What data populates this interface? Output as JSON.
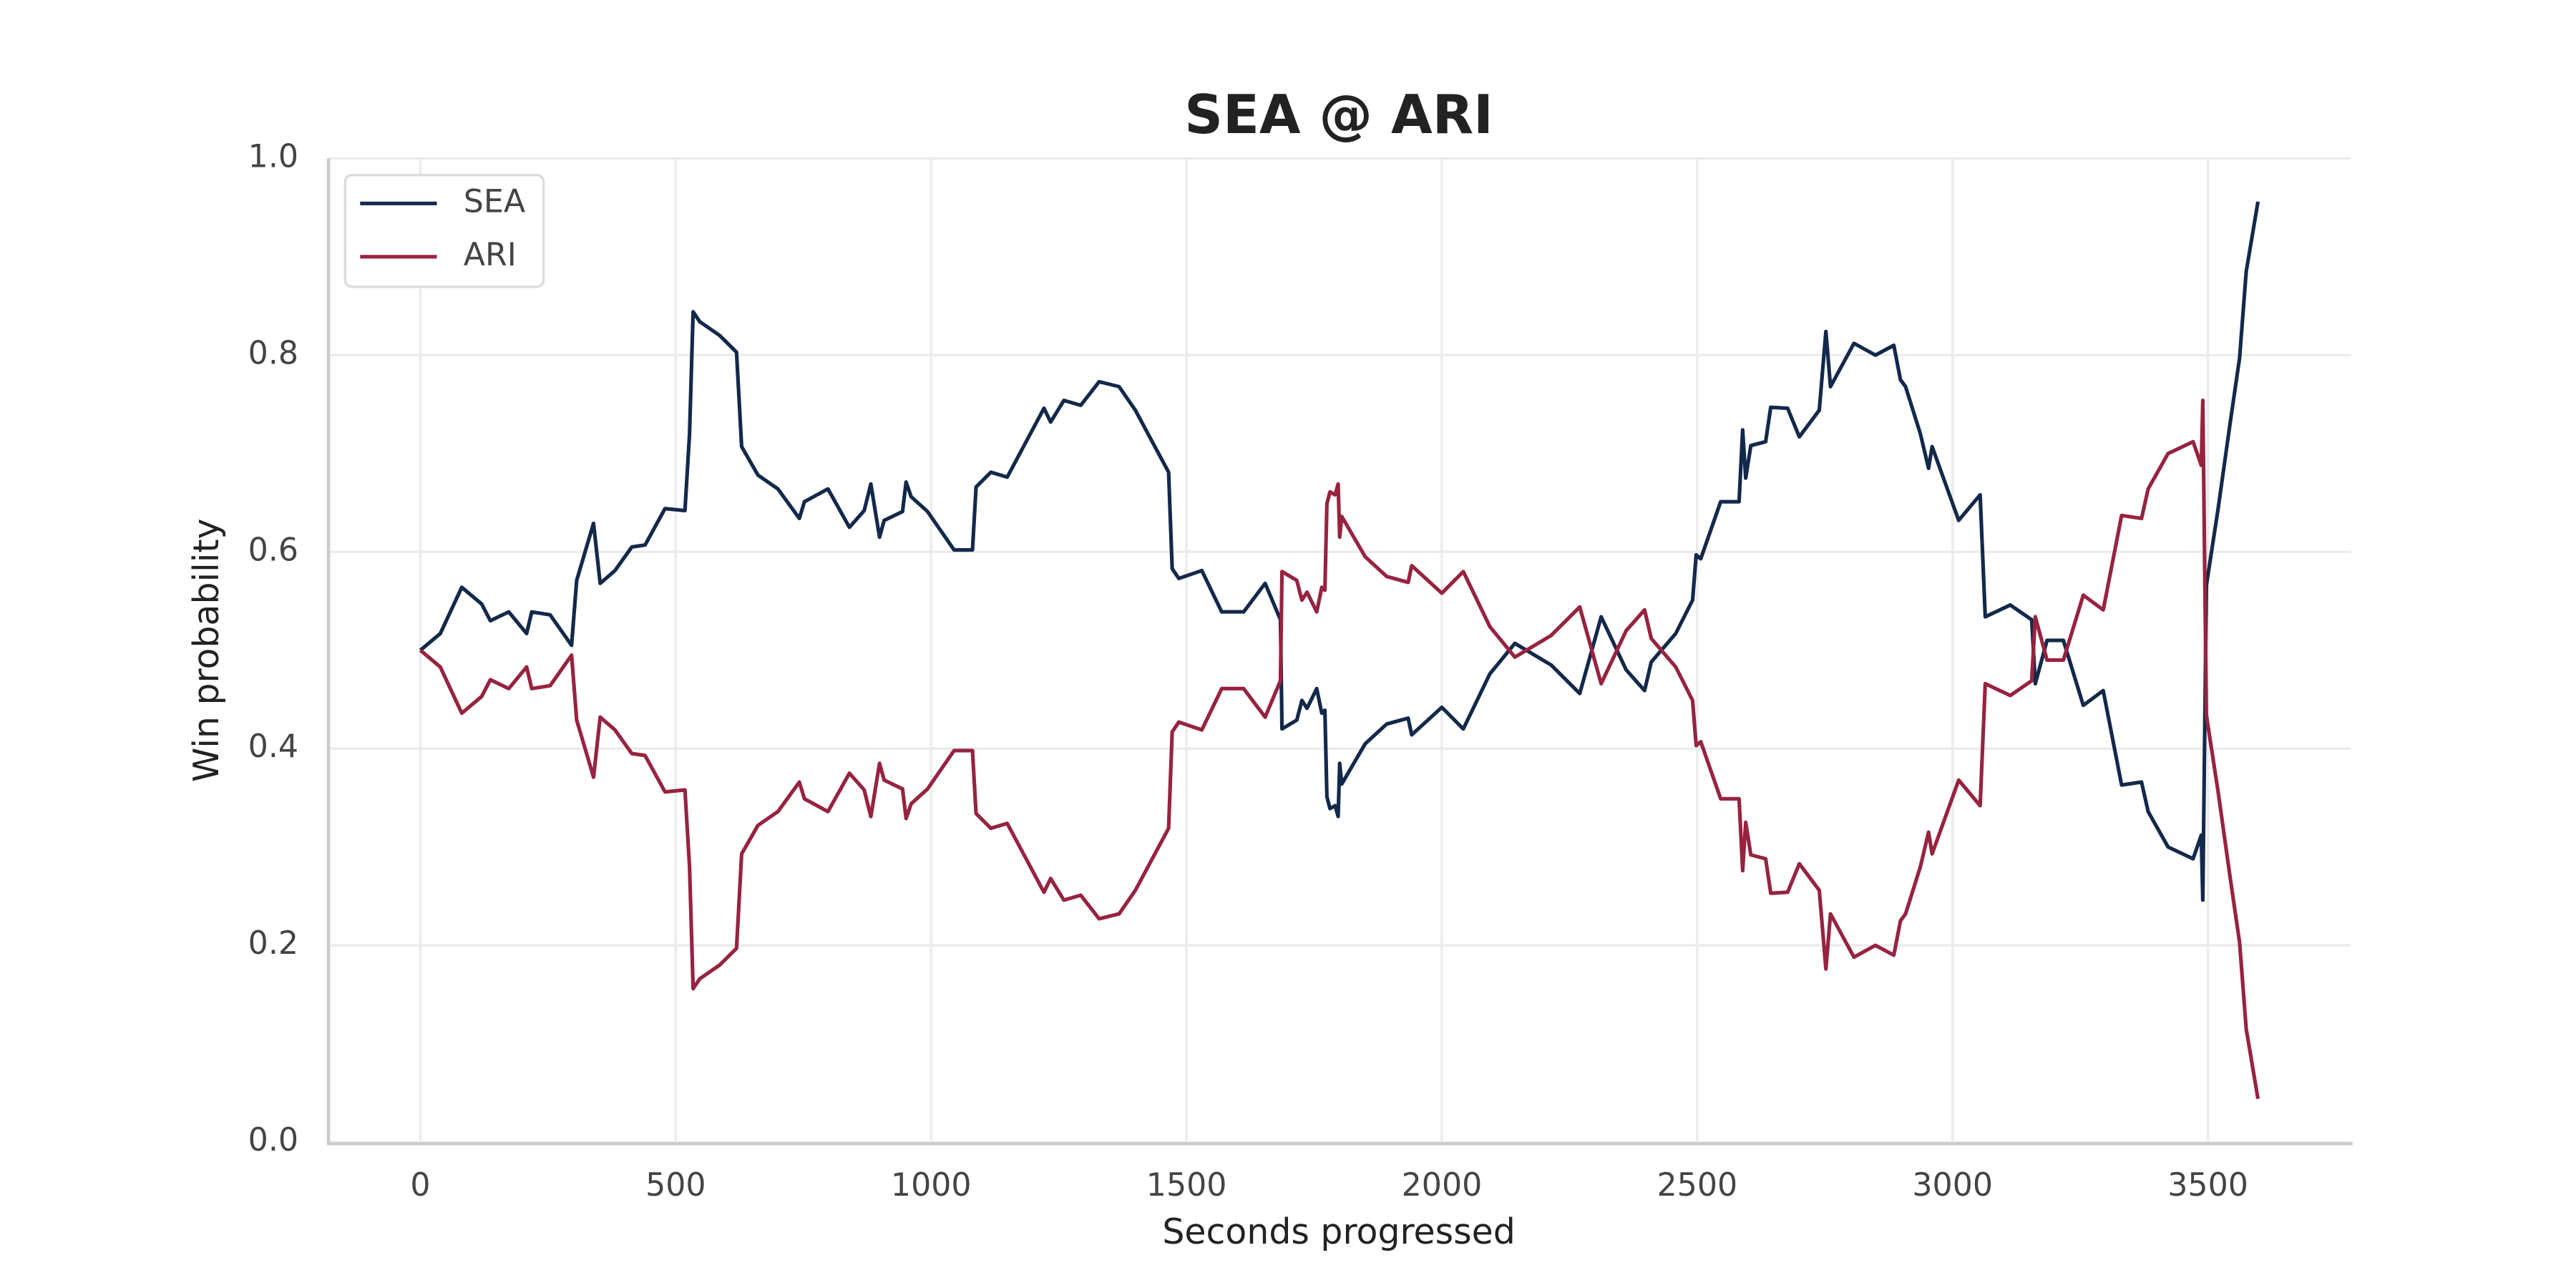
{
  "chart_data": {
    "type": "line",
    "title": "SEA @ ARI",
    "x_label": "Seconds progressed",
    "y_label": "Win probability",
    "x": [
      0,
      39,
      81,
      120,
      137,
      173,
      208,
      218,
      254,
      296,
      306,
      339,
      352,
      381,
      414,
      440,
      479,
      518,
      527,
      534,
      547,
      586,
      619,
      629,
      661,
      700,
      742,
      752,
      798,
      840,
      869,
      882,
      899,
      908,
      944,
      951,
      961,
      993,
      1045,
      1081,
      1088,
      1117,
      1149,
      1221,
      1234,
      1260,
      1293,
      1329,
      1368,
      1400,
      1433,
      1465,
      1472,
      1485,
      1530,
      1569,
      1612,
      1654,
      1684,
      1687,
      1716,
      1726,
      1736,
      1755,
      1765,
      1771,
      1775,
      1781,
      1791,
      1797,
      1800,
      1804,
      1850,
      1892,
      1934,
      1941,
      2000,
      2042,
      2094,
      2143,
      2214,
      2270,
      2312,
      2361,
      2397,
      2410,
      2458,
      2491,
      2498,
      2507,
      2546,
      2582,
      2589,
      2595,
      2605,
      2634,
      2644,
      2677,
      2700,
      2739,
      2752,
      2761,
      2807,
      2849,
      2885,
      2898,
      2908,
      2937,
      2953,
      2960,
      3012,
      3054,
      3064,
      3113,
      3155,
      3162,
      3185,
      3217,
      3256,
      3295,
      3331,
      3370,
      3383,
      3422,
      3471,
      3487,
      3490,
      3497,
      3520,
      3543,
      3562,
      3575,
      3598
    ],
    "series": [
      {
        "name": "SEA",
        "color": "#13294b",
        "values": [
          0.5,
          0.517,
          0.564,
          0.547,
          0.53,
          0.539,
          0.517,
          0.539,
          0.536,
          0.505,
          0.571,
          0.629,
          0.568,
          0.581,
          0.605,
          0.607,
          0.644,
          0.642,
          0.72,
          0.844,
          0.834,
          0.82,
          0.803,
          0.707,
          0.678,
          0.664,
          0.634,
          0.651,
          0.664,
          0.625,
          0.642,
          0.669,
          0.615,
          0.632,
          0.641,
          0.671,
          0.656,
          0.641,
          0.602,
          0.602,
          0.666,
          0.681,
          0.676,
          0.746,
          0.732,
          0.754,
          0.749,
          0.773,
          0.768,
          0.744,
          0.712,
          0.681,
          0.583,
          0.573,
          0.581,
          0.539,
          0.539,
          0.568,
          0.531,
          0.42,
          0.429,
          0.449,
          0.441,
          0.461,
          0.436,
          0.439,
          0.351,
          0.339,
          0.342,
          0.331,
          0.385,
          0.364,
          0.405,
          0.425,
          0.431,
          0.414,
          0.442,
          0.42,
          0.476,
          0.507,
          0.485,
          0.456,
          0.534,
          0.48,
          0.459,
          0.488,
          0.517,
          0.551,
          0.597,
          0.593,
          0.651,
          0.651,
          0.724,
          0.675,
          0.708,
          0.712,
          0.747,
          0.746,
          0.717,
          0.744,
          0.824,
          0.768,
          0.812,
          0.8,
          0.81,
          0.775,
          0.768,
          0.72,
          0.685,
          0.707,
          0.632,
          0.658,
          0.534,
          0.546,
          0.531,
          0.466,
          0.51,
          0.51,
          0.444,
          0.459,
          0.363,
          0.366,
          0.336,
          0.3,
          0.288,
          0.312,
          0.246,
          0.566,
          0.644,
          0.729,
          0.797,
          0.885,
          0.956
        ]
      },
      {
        "name": "ARI",
        "color": "#97233f",
        "values": [
          0.5,
          0.483,
          0.436,
          0.453,
          0.47,
          0.461,
          0.483,
          0.461,
          0.464,
          0.495,
          0.429,
          0.371,
          0.432,
          0.419,
          0.395,
          0.393,
          0.356,
          0.358,
          0.28,
          0.156,
          0.166,
          0.18,
          0.197,
          0.293,
          0.322,
          0.336,
          0.366,
          0.349,
          0.336,
          0.375,
          0.358,
          0.331,
          0.385,
          0.368,
          0.359,
          0.329,
          0.344,
          0.359,
          0.398,
          0.398,
          0.334,
          0.319,
          0.324,
          0.254,
          0.268,
          0.246,
          0.251,
          0.227,
          0.232,
          0.256,
          0.288,
          0.319,
          0.417,
          0.427,
          0.419,
          0.461,
          0.461,
          0.432,
          0.469,
          0.58,
          0.571,
          0.551,
          0.559,
          0.539,
          0.564,
          0.561,
          0.649,
          0.661,
          0.658,
          0.669,
          0.615,
          0.636,
          0.595,
          0.575,
          0.569,
          0.586,
          0.558,
          0.58,
          0.524,
          0.493,
          0.515,
          0.544,
          0.466,
          0.52,
          0.541,
          0.512,
          0.483,
          0.449,
          0.403,
          0.407,
          0.349,
          0.349,
          0.276,
          0.325,
          0.292,
          0.288,
          0.253,
          0.254,
          0.283,
          0.256,
          0.176,
          0.232,
          0.188,
          0.2,
          0.19,
          0.225,
          0.232,
          0.28,
          0.315,
          0.293,
          0.368,
          0.342,
          0.466,
          0.454,
          0.469,
          0.534,
          0.49,
          0.49,
          0.556,
          0.541,
          0.637,
          0.634,
          0.664,
          0.7,
          0.712,
          0.688,
          0.754,
          0.434,
          0.356,
          0.271,
          0.203,
          0.115,
          0.044
        ]
      }
    ],
    "xlim": [
      -180,
      3780
    ],
    "ylim": [
      0,
      1
    ],
    "xticks": [
      0,
      500,
      1000,
      1500,
      2000,
      2500,
      3000,
      3500
    ],
    "yticks": [
      {
        "value": 0,
        "label": "0.0"
      },
      0.2,
      0.4,
      0.6,
      0.8,
      {
        "value": 1,
        "label": "1.0"
      }
    ],
    "grid": true,
    "legend": "upper left"
  }
}
